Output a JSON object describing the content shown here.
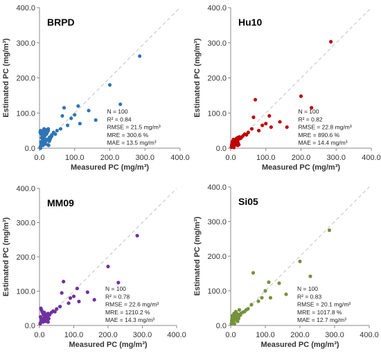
{
  "chart_data": [
    {
      "type": "scatter",
      "title": "BRPD",
      "xlabel": "Measured PC (mg/m³)",
      "ylabel": "Estimated PC (mg/m³)",
      "xlim": [
        0,
        400
      ],
      "ylim": [
        0,
        400
      ],
      "ticks": [
        "0.0",
        "100.0",
        "200.0",
        "300.0",
        "400.0"
      ],
      "color": "#2e75b6",
      "stats": [
        "N = 100",
        "R² = 0.84",
        "RMSE = 21.5 mg/m³",
        "MRE = 300.6 %",
        "MAE = 13.5 mg/m³"
      ],
      "x": [
        285,
        200,
        230,
        140,
        160,
        110,
        100,
        90,
        80,
        70,
        65,
        115,
        60,
        50,
        45,
        40,
        35,
        30,
        28,
        25,
        22,
        20,
        18,
        15,
        12,
        10,
        8,
        5,
        3,
        2,
        2,
        3,
        5,
        7,
        9,
        11,
        13,
        15,
        17,
        19,
        22,
        25,
        28,
        30,
        32,
        35,
        6,
        8,
        10,
        14,
        4,
        6,
        12,
        16,
        20,
        24,
        26,
        18,
        9,
        3
      ],
      "y": [
        262,
        180,
        125,
        107,
        80,
        120,
        95,
        85,
        65,
        115,
        92,
        70,
        55,
        50,
        40,
        45,
        38,
        32,
        30,
        55,
        45,
        40,
        50,
        35,
        30,
        25,
        20,
        15,
        5,
        2,
        45,
        50,
        40,
        45,
        35,
        50,
        55,
        40,
        45,
        52,
        48,
        50,
        20,
        25,
        30,
        35,
        10,
        28,
        8,
        22,
        18,
        30,
        15,
        12,
        25,
        10,
        8,
        20,
        38,
        0
      ]
    },
    {
      "type": "scatter",
      "title": "Hu10",
      "xlabel": "Measured PC (mg/m³)",
      "ylabel": "Estimated PC (mg/m³)",
      "xlim": [
        0,
        400
      ],
      "ylim": [
        0,
        400
      ],
      "ticks": [
        "0.0",
        "100.0",
        "200.0",
        "300.0",
        "400.0"
      ],
      "color": "#c00000",
      "stats": [
        "N = 100",
        "R² = 0.82",
        "RMSE = 22.8 mg/m³",
        "MRE = 890.6 %",
        "MAE = 14.4 mg/m³"
      ],
      "x": [
        285,
        200,
        230,
        140,
        160,
        110,
        100,
        90,
        80,
        70,
        65,
        115,
        60,
        50,
        45,
        40,
        35,
        30,
        28,
        25,
        22,
        20,
        18,
        15,
        12,
        10,
        8,
        5,
        3,
        2,
        4,
        6,
        8,
        10,
        12,
        14,
        16,
        18,
        20,
        7,
        9,
        11,
        13,
        5,
        3,
        15,
        17,
        19,
        21,
        23
      ],
      "y": [
        303,
        148,
        115,
        75,
        60,
        92,
        70,
        65,
        50,
        138,
        88,
        60,
        55,
        45,
        38,
        40,
        35,
        30,
        28,
        32,
        25,
        30,
        22,
        20,
        18,
        15,
        12,
        10,
        6,
        3,
        15,
        20,
        25,
        22,
        18,
        15,
        12,
        10,
        8,
        5,
        2,
        8,
        12,
        18,
        10,
        25,
        28,
        20,
        15,
        10
      ]
    },
    {
      "type": "scatter",
      "title": "MM09",
      "xlabel": "Measured PC (mg/m³)",
      "ylabel": "Estimated PC (mg/m³)",
      "xlim": [
        0,
        400
      ],
      "ylim": [
        0,
        400
      ],
      "ticks": [
        "0.0",
        "100.0",
        "200.0",
        "300.0",
        "400.0"
      ],
      "color": "#7030a0",
      "stats": [
        "N = 100",
        "R² = 0.78",
        "RMSE = 22.6 mg/m³",
        "MRE = 1210.2 %",
        "MAE = 14.3 mg/m³"
      ],
      "x": [
        285,
        200,
        230,
        140,
        160,
        110,
        100,
        90,
        85,
        70,
        65,
        115,
        60,
        50,
        45,
        40,
        35,
        30,
        28,
        25,
        22,
        20,
        18,
        15,
        12,
        10,
        8,
        5,
        3,
        2,
        4,
        6,
        8,
        10,
        12,
        14,
        16,
        18,
        20,
        7,
        9,
        11,
        13,
        5,
        3,
        15,
        17,
        19,
        21,
        23,
        25,
        27
      ],
      "y": [
        262,
        172,
        125,
        97,
        75,
        108,
        85,
        80,
        65,
        128,
        95,
        70,
        55,
        48,
        40,
        42,
        38,
        32,
        30,
        35,
        28,
        32,
        25,
        22,
        20,
        18,
        15,
        12,
        8,
        5,
        50,
        45,
        40,
        35,
        30,
        38,
        28,
        25,
        22,
        18,
        12,
        10,
        15,
        20,
        25,
        30,
        18,
        12,
        22,
        15,
        10,
        20
      ]
    },
    {
      "type": "scatter",
      "title": "Si05",
      "xlabel": "Measured PC (mg/m³)",
      "ylabel": "Estimated PC (mg/m³)",
      "xlim": [
        0,
        400
      ],
      "ylim": [
        0,
        400
      ],
      "ticks": [
        "0.0",
        "100.0",
        "200.0",
        "300.0",
        "400.0"
      ],
      "color": "#76923c",
      "stats": [
        "N = 100",
        "R² = 0.83",
        "RMSE = 20.1 mg/m³",
        "MRE = 1017.8 %",
        "MAE = 12.7 mg/m³"
      ],
      "x": [
        285,
        200,
        230,
        140,
        160,
        110,
        100,
        90,
        80,
        65,
        115,
        60,
        50,
        45,
        40,
        35,
        30,
        28,
        25,
        22,
        20,
        18,
        15,
        12,
        10,
        8,
        5,
        3,
        2,
        4,
        6,
        8,
        10,
        12,
        14,
        16,
        18,
        20,
        7,
        9,
        11,
        13,
        5,
        3,
        15,
        17,
        19,
        21,
        23,
        25
      ],
      "y": [
        275,
        185,
        142,
        122,
        90,
        125,
        100,
        80,
        70,
        152,
        80,
        60,
        48,
        45,
        40,
        38,
        35,
        30,
        28,
        32,
        25,
        28,
        22,
        20,
        18,
        15,
        12,
        8,
        5,
        20,
        25,
        30,
        35,
        28,
        22,
        18,
        15,
        12,
        10,
        8,
        5,
        22,
        28,
        15,
        40,
        35,
        30,
        25,
        20,
        45
      ]
    }
  ]
}
